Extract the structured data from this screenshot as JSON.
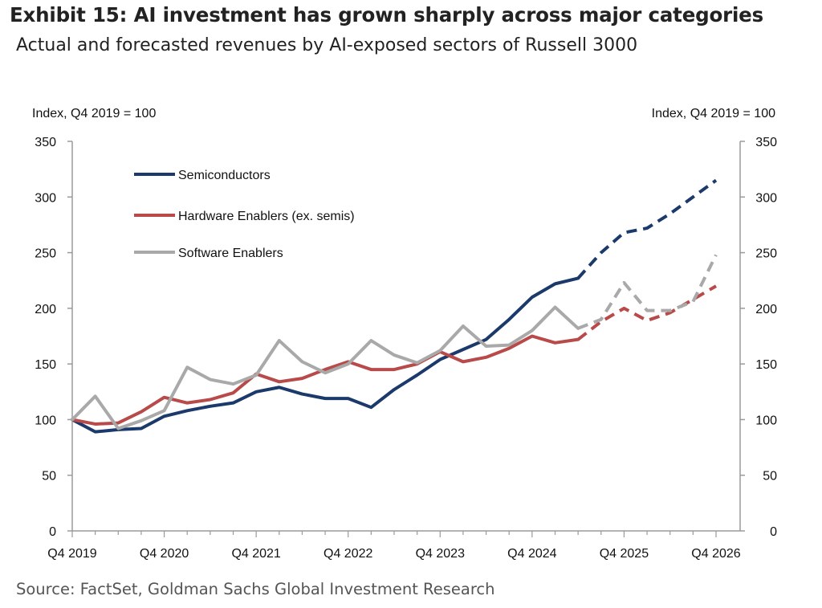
{
  "title": "Exhibit 15: AI investment has grown sharply across major categories",
  "subtitle": "Actual and forecasted revenues by AI-exposed sectors of Russell 3000",
  "source": "Source: FactSet, Goldman Sachs Global Investment Research",
  "chart_data": {
    "type": "line",
    "left_axis_label": "Index, Q4 2019 = 100",
    "right_axis_label": "Index, Q4 2019 = 100",
    "ylim": [
      0,
      350
    ],
    "yticks": [
      0,
      50,
      100,
      150,
      200,
      250,
      300,
      350
    ],
    "x_tick_labels": [
      "Q4 2019",
      "Q4 2020",
      "Q4 2021",
      "Q4 2022",
      "Q4 2023",
      "Q4 2024",
      "Q4 2025",
      "Q4 2026"
    ],
    "x_periods": 29,
    "forecast_starts_at_index": 23,
    "grid": false,
    "legend_position": "top-left",
    "series": [
      {
        "name": "Semiconductors",
        "color": "#1b3a6b",
        "values": [
          100,
          89,
          91,
          92,
          103,
          108,
          112,
          115,
          125,
          129,
          123,
          119,
          119,
          111,
          127,
          140,
          154,
          163,
          172,
          190,
          210,
          222,
          227,
          250,
          268,
          272,
          285,
          300,
          315
        ]
      },
      {
        "name": "Hardware Enablers (ex. semis)",
        "color": "#b84a4a",
        "values": [
          100,
          96,
          97,
          107,
          120,
          115,
          118,
          124,
          141,
          134,
          137,
          145,
          152,
          145,
          145,
          150,
          161,
          152,
          156,
          164,
          175,
          169,
          172,
          188,
          200,
          189,
          196,
          208,
          220
        ]
      },
      {
        "name": "Software Enablers",
        "color": "#a9a9a9",
        "values": [
          100,
          121,
          92,
          99,
          108,
          147,
          136,
          132,
          140,
          171,
          152,
          142,
          150,
          171,
          158,
          151,
          162,
          184,
          166,
          167,
          180,
          201,
          182,
          190,
          223,
          198,
          198,
          206,
          248
        ]
      }
    ]
  }
}
